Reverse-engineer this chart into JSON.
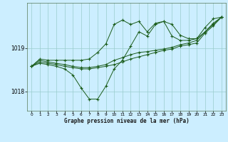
{
  "title": "Graphe pression niveau de la mer (hPa)",
  "bg_color": "#cceeff",
  "grid_color": "#99cccc",
  "line_color": "#1a5c1a",
  "marker_color": "#1a5c1a",
  "xlim": [
    -0.5,
    23.5
  ],
  "ylim": [
    1017.55,
    1020.05
  ],
  "yticks": [
    1018,
    1019
  ],
  "xticks": [
    0,
    1,
    2,
    3,
    4,
    5,
    6,
    7,
    8,
    9,
    10,
    11,
    12,
    13,
    14,
    15,
    16,
    17,
    18,
    19,
    20,
    21,
    22,
    23
  ],
  "series": [
    {
      "x": [
        0,
        1,
        2,
        3,
        4,
        5,
        6,
        7,
        8,
        9,
        10,
        11,
        12,
        13,
        14,
        15,
        16,
        17,
        18,
        19,
        20,
        21,
        22,
        23
      ],
      "y": [
        1018.58,
        1018.75,
        1018.72,
        1018.72,
        1018.72,
        1018.72,
        1018.72,
        1018.75,
        1018.9,
        1019.1,
        1019.55,
        1019.65,
        1019.55,
        1019.62,
        1019.38,
        1019.58,
        1019.62,
        1019.55,
        1019.3,
        1019.22,
        1019.22,
        1019.48,
        1019.68,
        1019.72
      ]
    },
    {
      "x": [
        0,
        1,
        2,
        3,
        4,
        5,
        6,
        7,
        8,
        9,
        10,
        11,
        12,
        13,
        14,
        15,
        16,
        17,
        18,
        19,
        20,
        21,
        22,
        23
      ],
      "y": [
        1018.58,
        1018.65,
        1018.62,
        1018.58,
        1018.52,
        1018.38,
        1018.08,
        1017.82,
        1017.82,
        1018.12,
        1018.52,
        1018.72,
        1019.05,
        1019.38,
        1019.28,
        1019.55,
        1019.62,
        1019.28,
        1019.18,
        1019.18,
        1019.22,
        1019.38,
        1019.58,
        1019.72
      ]
    },
    {
      "x": [
        0,
        1,
        2,
        3,
        4,
        5,
        6,
        7,
        8,
        9,
        10,
        11,
        12,
        13,
        14,
        15,
        16,
        17,
        18,
        19,
        20,
        21,
        22,
        23
      ],
      "y": [
        1018.58,
        1018.72,
        1018.68,
        1018.65,
        1018.62,
        1018.58,
        1018.55,
        1018.55,
        1018.58,
        1018.62,
        1018.72,
        1018.78,
        1018.85,
        1018.9,
        1018.92,
        1018.95,
        1018.98,
        1019.02,
        1019.08,
        1019.12,
        1019.18,
        1019.38,
        1019.55,
        1019.72
      ]
    },
    {
      "x": [
        0,
        1,
        2,
        3,
        4,
        5,
        6,
        7,
        8,
        9,
        10,
        11,
        12,
        13,
        14,
        15,
        16,
        17,
        18,
        19,
        20,
        21,
        22,
        23
      ],
      "y": [
        1018.58,
        1018.68,
        1018.65,
        1018.62,
        1018.58,
        1018.55,
        1018.52,
        1018.52,
        1018.55,
        1018.58,
        1018.62,
        1018.68,
        1018.75,
        1018.8,
        1018.85,
        1018.9,
        1018.95,
        1018.98,
        1019.05,
        1019.08,
        1019.12,
        1019.35,
        1019.52,
        1019.72
      ]
    }
  ]
}
